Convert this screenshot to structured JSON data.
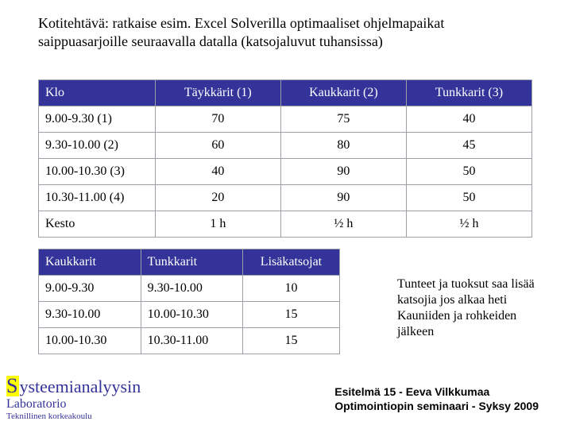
{
  "heading": "Kotitehtävä: ratkaise esim. Excel Solverilla optimaaliset ohjelmapaikat saippuasarjoille seuraavalla datalla (katsojaluvut tuhansissa)",
  "table1": {
    "headers": [
      "Klo",
      "Täykkärit (1)",
      "Kaukkarit  (2)",
      "Tunkkarit (3)"
    ],
    "rows": [
      [
        "9.00-9.30 (1)",
        "70",
        "75",
        "40"
      ],
      [
        "9.30-10.00 (2)",
        "60",
        "80",
        "45"
      ],
      [
        "10.00-10.30 (3)",
        "40",
        "90",
        "50"
      ],
      [
        "10.30-11.00 (4)",
        "20",
        "90",
        "50"
      ],
      [
        "Kesto",
        "1 h",
        "½ h",
        "½ h"
      ]
    ]
  },
  "table2": {
    "headers": [
      "Kaukkarit",
      "Tunkkarit",
      "Lisäkatsojat"
    ],
    "rows": [
      [
        "9.00-9.30",
        "9.30-10.00",
        "10"
      ],
      [
        "9.30-10.00",
        "10.00-10.30",
        "15"
      ],
      [
        "10.00-10.30",
        "10.30-11.00",
        "15"
      ]
    ]
  },
  "sidenote": "Tunteet ja tuoksut saa lisää katsojia jos alkaa heti Kauniiden ja rohkeiden jälkeen",
  "footer": {
    "brand_s": "S",
    "brand_rest": "ysteemianalyysin",
    "lab": "Laboratorio",
    "uni": "Teknillinen korkeakoulu",
    "right1": "Esitelmä 15 - Eeva Vilkkumaa",
    "right2": "Optimointiopin seminaari - Syksy 2009"
  },
  "colors": {
    "header_bg": "#333399",
    "header_fg": "#ffffff",
    "border": "#9aa0a6",
    "highlight": "#ffff00"
  }
}
